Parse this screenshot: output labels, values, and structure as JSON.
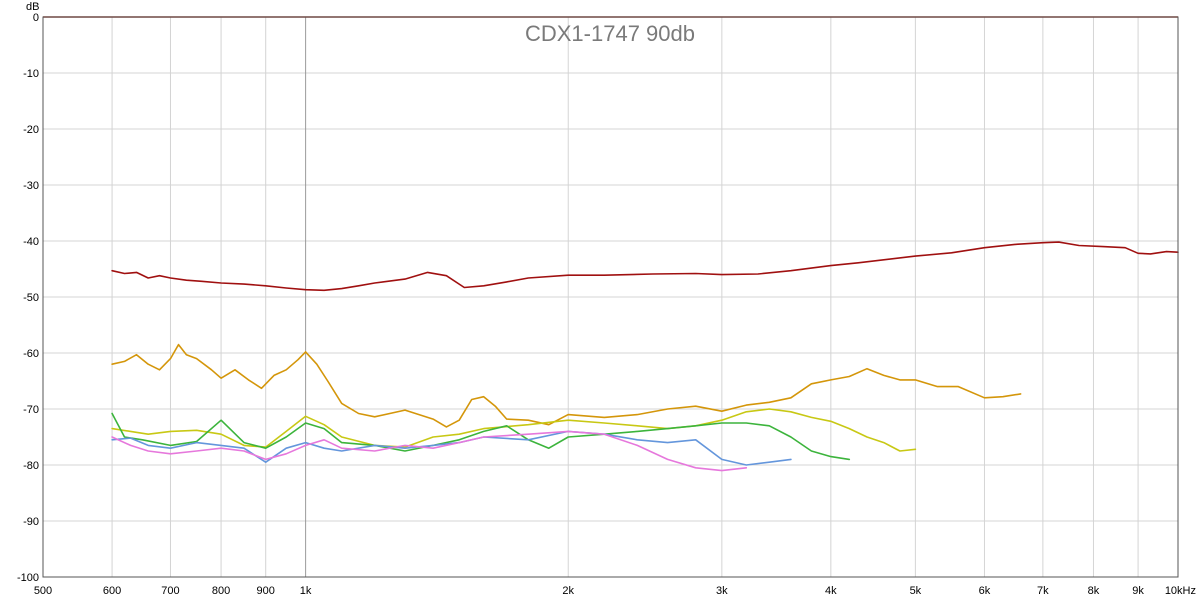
{
  "chart_data": {
    "type": "line",
    "title": "CDX1-1747 90db",
    "ylabel": "dB",
    "xunit": "Hz",
    "xscale": "log",
    "xlim": [
      500,
      10000
    ],
    "ylim": [
      -100,
      0
    ],
    "grid": true,
    "x_ticks": [
      {
        "value": 500,
        "label": "500"
      },
      {
        "value": 600,
        "label": "600"
      },
      {
        "value": 700,
        "label": "700"
      },
      {
        "value": 800,
        "label": "800"
      },
      {
        "value": 900,
        "label": "900"
      },
      {
        "value": 1000,
        "label": "1k"
      },
      {
        "value": 2000,
        "label": "2k"
      },
      {
        "value": 3000,
        "label": "3k"
      },
      {
        "value": 4000,
        "label": "4k"
      },
      {
        "value": 5000,
        "label": "5k"
      },
      {
        "value": 6000,
        "label": "6k"
      },
      {
        "value": 7000,
        "label": "7k"
      },
      {
        "value": 8000,
        "label": "8k"
      },
      {
        "value": 9000,
        "label": "9k"
      },
      {
        "value": 10000,
        "label": "10kHz"
      }
    ],
    "y_ticks": [
      {
        "value": 0,
        "label": "0"
      },
      {
        "value": -10,
        "label": "-10"
      },
      {
        "value": -20,
        "label": "-20"
      },
      {
        "value": -30,
        "label": "-30"
      },
      {
        "value": -40,
        "label": "-40"
      },
      {
        "value": -50,
        "label": "-50"
      },
      {
        "value": -60,
        "label": "-60"
      },
      {
        "value": -70,
        "label": "-70"
      },
      {
        "value": -80,
        "label": "-80"
      },
      {
        "value": -90,
        "label": "-90"
      },
      {
        "value": -100,
        "label": "-100"
      }
    ],
    "series": [
      {
        "color": "#a01010",
        "points": [
          [
            600,
            -45.3
          ],
          [
            620,
            -45.8
          ],
          [
            640,
            -45.6
          ],
          [
            660,
            -46.6
          ],
          [
            680,
            -46.2
          ],
          [
            700,
            -46.6
          ],
          [
            730,
            -47.0
          ],
          [
            760,
            -47.2
          ],
          [
            800,
            -47.5
          ],
          [
            850,
            -47.7
          ],
          [
            900,
            -48.0
          ],
          [
            950,
            -48.4
          ],
          [
            1000,
            -48.7
          ],
          [
            1050,
            -48.8
          ],
          [
            1100,
            -48.5
          ],
          [
            1150,
            -48.0
          ],
          [
            1200,
            -47.5
          ],
          [
            1300,
            -46.8
          ],
          [
            1380,
            -45.6
          ],
          [
            1450,
            -46.2
          ],
          [
            1520,
            -48.3
          ],
          [
            1600,
            -48.0
          ],
          [
            1700,
            -47.3
          ],
          [
            1800,
            -46.6
          ],
          [
            2000,
            -46.1
          ],
          [
            2200,
            -46.1
          ],
          [
            2500,
            -45.9
          ],
          [
            2800,
            -45.8
          ],
          [
            3000,
            -46.0
          ],
          [
            3300,
            -45.9
          ],
          [
            3600,
            -45.3
          ],
          [
            4000,
            -44.4
          ],
          [
            4300,
            -43.9
          ],
          [
            5000,
            -42.7
          ],
          [
            5500,
            -42.1
          ],
          [
            6000,
            -41.2
          ],
          [
            6500,
            -40.6
          ],
          [
            7000,
            -40.3
          ],
          [
            7300,
            -40.2
          ],
          [
            7700,
            -40.8
          ],
          [
            8200,
            -41.0
          ],
          [
            8700,
            -41.2
          ],
          [
            9000,
            -42.2
          ],
          [
            9300,
            -42.3
          ],
          [
            9700,
            -41.9
          ],
          [
            10000,
            -42.0
          ]
        ]
      },
      {
        "color": "#d4960a",
        "points": [
          [
            600,
            -62.0
          ],
          [
            620,
            -61.5
          ],
          [
            640,
            -60.3
          ],
          [
            660,
            -62.0
          ],
          [
            680,
            -63.0
          ],
          [
            700,
            -61.0
          ],
          [
            715,
            -58.5
          ],
          [
            730,
            -60.3
          ],
          [
            750,
            -61.0
          ],
          [
            780,
            -63.0
          ],
          [
            800,
            -64.5
          ],
          [
            830,
            -63.0
          ],
          [
            860,
            -64.8
          ],
          [
            890,
            -66.3
          ],
          [
            920,
            -64.0
          ],
          [
            950,
            -63.0
          ],
          [
            980,
            -61.2
          ],
          [
            1000,
            -59.8
          ],
          [
            1030,
            -62.0
          ],
          [
            1060,
            -65.0
          ],
          [
            1100,
            -69.0
          ],
          [
            1150,
            -70.8
          ],
          [
            1200,
            -71.4
          ],
          [
            1300,
            -70.2
          ],
          [
            1400,
            -71.8
          ],
          [
            1450,
            -73.2
          ],
          [
            1500,
            -72.0
          ],
          [
            1550,
            -68.3
          ],
          [
            1600,
            -67.8
          ],
          [
            1650,
            -69.5
          ],
          [
            1700,
            -71.8
          ],
          [
            1800,
            -72.0
          ],
          [
            1900,
            -72.8
          ],
          [
            2000,
            -71.0
          ],
          [
            2200,
            -71.5
          ],
          [
            2400,
            -71.0
          ],
          [
            2600,
            -70.0
          ],
          [
            2800,
            -69.5
          ],
          [
            3000,
            -70.4
          ],
          [
            3200,
            -69.3
          ],
          [
            3400,
            -68.8
          ],
          [
            3600,
            -68.0
          ],
          [
            3800,
            -65.5
          ],
          [
            4000,
            -64.8
          ],
          [
            4200,
            -64.2
          ],
          [
            4400,
            -62.8
          ],
          [
            4600,
            -64.0
          ],
          [
            4800,
            -64.8
          ],
          [
            5000,
            -64.8
          ],
          [
            5300,
            -66.0
          ],
          [
            5600,
            -66.0
          ],
          [
            6000,
            -68.0
          ],
          [
            6300,
            -67.8
          ],
          [
            6600,
            -67.3
          ]
        ]
      },
      {
        "color": "#c8c814",
        "points": [
          [
            600,
            -73.5
          ],
          [
            630,
            -74.0
          ],
          [
            660,
            -74.5
          ],
          [
            700,
            -74.0
          ],
          [
            750,
            -73.8
          ],
          [
            800,
            -74.5
          ],
          [
            850,
            -76.5
          ],
          [
            900,
            -76.8
          ],
          [
            950,
            -74.0
          ],
          [
            1000,
            -71.3
          ],
          [
            1050,
            -72.8
          ],
          [
            1100,
            -75.0
          ],
          [
            1200,
            -76.5
          ],
          [
            1300,
            -76.8
          ],
          [
            1400,
            -75.0
          ],
          [
            1500,
            -74.5
          ],
          [
            1600,
            -73.5
          ],
          [
            1800,
            -72.8
          ],
          [
            2000,
            -72.0
          ],
          [
            2200,
            -72.5
          ],
          [
            2400,
            -73.0
          ],
          [
            2600,
            -73.5
          ],
          [
            2800,
            -73.0
          ],
          [
            3000,
            -72.0
          ],
          [
            3200,
            -70.5
          ],
          [
            3400,
            -70.0
          ],
          [
            3600,
            -70.5
          ],
          [
            3800,
            -71.5
          ],
          [
            4000,
            -72.2
          ],
          [
            4200,
            -73.5
          ],
          [
            4400,
            -75.0
          ],
          [
            4600,
            -76.0
          ],
          [
            4800,
            -77.5
          ],
          [
            5000,
            -77.2
          ]
        ]
      },
      {
        "color": "#3cb43c",
        "points": [
          [
            600,
            -70.8
          ],
          [
            620,
            -75.0
          ],
          [
            650,
            -75.5
          ],
          [
            700,
            -76.5
          ],
          [
            750,
            -75.8
          ],
          [
            800,
            -72.0
          ],
          [
            850,
            -76.0
          ],
          [
            900,
            -77.0
          ],
          [
            950,
            -75.0
          ],
          [
            1000,
            -72.5
          ],
          [
            1050,
            -73.5
          ],
          [
            1100,
            -76.0
          ],
          [
            1200,
            -76.5
          ],
          [
            1300,
            -77.5
          ],
          [
            1400,
            -76.5
          ],
          [
            1500,
            -75.5
          ],
          [
            1600,
            -74.0
          ],
          [
            1700,
            -73.0
          ],
          [
            1800,
            -75.5
          ],
          [
            1900,
            -77.0
          ],
          [
            2000,
            -75.0
          ],
          [
            2200,
            -74.5
          ],
          [
            2400,
            -74.0
          ],
          [
            2600,
            -73.5
          ],
          [
            2800,
            -73.0
          ],
          [
            3000,
            -72.5
          ],
          [
            3200,
            -72.5
          ],
          [
            3400,
            -73.0
          ],
          [
            3600,
            -75.0
          ],
          [
            3800,
            -77.5
          ],
          [
            4000,
            -78.5
          ],
          [
            4200,
            -79.0
          ]
        ]
      },
      {
        "color": "#6496dc",
        "points": [
          [
            600,
            -75.5
          ],
          [
            630,
            -75.2
          ],
          [
            660,
            -76.5
          ],
          [
            700,
            -77.0
          ],
          [
            750,
            -76.0
          ],
          [
            800,
            -76.5
          ],
          [
            850,
            -77.0
          ],
          [
            900,
            -79.5
          ],
          [
            950,
            -77.0
          ],
          [
            1000,
            -76.0
          ],
          [
            1050,
            -77.0
          ],
          [
            1100,
            -77.5
          ],
          [
            1200,
            -76.5
          ],
          [
            1300,
            -77.0
          ],
          [
            1400,
            -76.5
          ],
          [
            1500,
            -76.0
          ],
          [
            1600,
            -75.0
          ],
          [
            1800,
            -75.5
          ],
          [
            2000,
            -74.0
          ],
          [
            2200,
            -74.5
          ],
          [
            2400,
            -75.5
          ],
          [
            2600,
            -76.0
          ],
          [
            2800,
            -75.5
          ],
          [
            3000,
            -79.0
          ],
          [
            3200,
            -80.0
          ],
          [
            3400,
            -79.5
          ],
          [
            3600,
            -79.0
          ]
        ]
      },
      {
        "color": "#e678dc",
        "points": [
          [
            600,
            -75.0
          ],
          [
            630,
            -76.5
          ],
          [
            660,
            -77.5
          ],
          [
            700,
            -78.0
          ],
          [
            750,
            -77.5
          ],
          [
            800,
            -77.0
          ],
          [
            850,
            -77.5
          ],
          [
            900,
            -79.0
          ],
          [
            950,
            -78.0
          ],
          [
            1000,
            -76.5
          ],
          [
            1050,
            -75.5
          ],
          [
            1100,
            -77.0
          ],
          [
            1200,
            -77.5
          ],
          [
            1300,
            -76.5
          ],
          [
            1400,
            -77.0
          ],
          [
            1500,
            -76.0
          ],
          [
            1600,
            -75.0
          ],
          [
            1800,
            -74.5
          ],
          [
            2000,
            -74.0
          ],
          [
            2200,
            -74.5
          ],
          [
            2400,
            -76.5
          ],
          [
            2600,
            -79.0
          ],
          [
            2800,
            -80.5
          ],
          [
            3000,
            -81.0
          ],
          [
            3200,
            -80.5
          ]
        ]
      }
    ]
  }
}
